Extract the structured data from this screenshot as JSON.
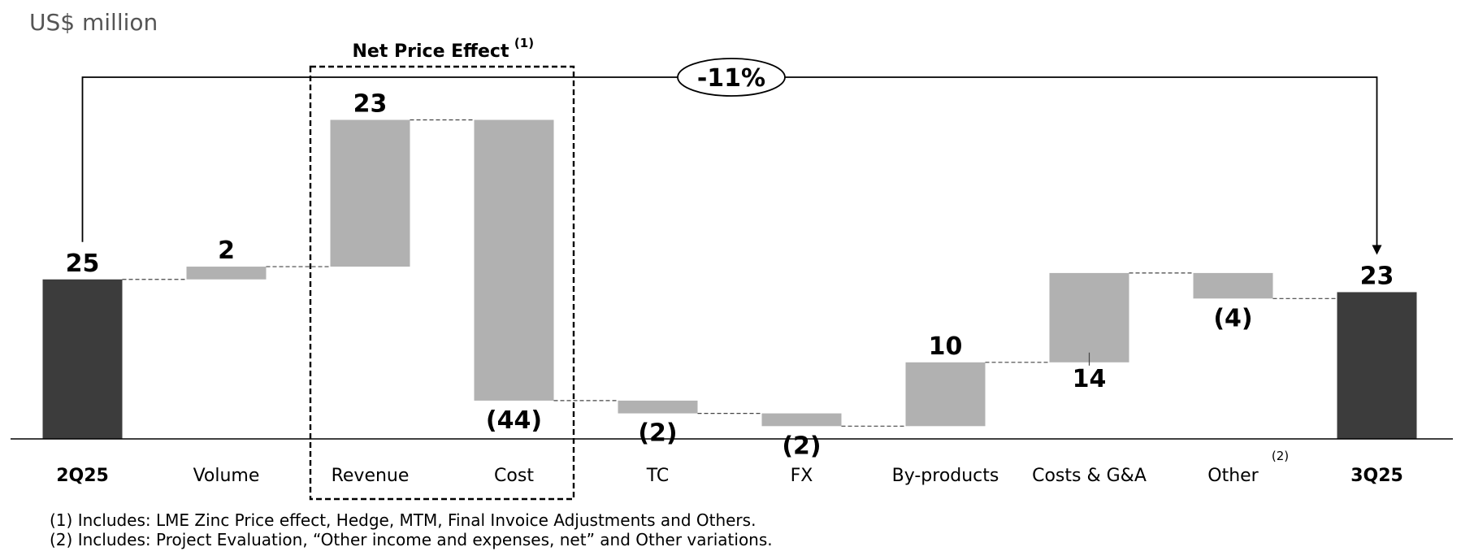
{
  "chart_data": {
    "type": "bar",
    "subtype": "waterfall",
    "unit_label": "US$ million",
    "categories": [
      "2Q25",
      "Volume",
      "Revenue",
      "Cost",
      "TC",
      "FX",
      "By-products",
      "Costs & G&A",
      "Other",
      "3Q25"
    ],
    "steps": [
      {
        "category": "2Q25",
        "kind": "total",
        "value": 25,
        "label": "25"
      },
      {
        "category": "Volume",
        "kind": "delta",
        "value": 2,
        "label": "2"
      },
      {
        "category": "Revenue",
        "kind": "delta",
        "value": 23,
        "label": "23"
      },
      {
        "category": "Cost",
        "kind": "delta",
        "value": -44,
        "label": "(44)"
      },
      {
        "category": "TC",
        "kind": "delta",
        "value": -2,
        "label": "(2)"
      },
      {
        "category": "FX",
        "kind": "delta",
        "value": -2,
        "label": "(2)"
      },
      {
        "category": "By-products",
        "kind": "delta",
        "value": 10,
        "label": "10"
      },
      {
        "category": "Costs & G&A",
        "kind": "delta",
        "value": 14,
        "label": "14"
      },
      {
        "category": "Other",
        "kind": "delta",
        "value": -4,
        "label": "(4)",
        "footnote_marker": "(2)"
      },
      {
        "category": "3Q25",
        "kind": "total",
        "value": 23,
        "label": "23"
      }
    ],
    "bold_categories": [
      "2Q25",
      "3Q25"
    ],
    "net_price_box": {
      "title": "Net Price Effect",
      "marker": "(1)",
      "categories": [
        "Revenue",
        "Cost"
      ]
    },
    "change_label": "-11%",
    "colors": {
      "total": "#3c3c3c",
      "delta": "#b1b1b1",
      "baseline": "#000000",
      "connector": "#444444"
    },
    "footnotes": [
      "(1) Includes: LME Zinc Price effect, Hedge, MTM, Final Invoice Adjustments and Others.",
      "(2) Includes: Project Evaluation, “Other income and expenses, net” and Other variations."
    ]
  }
}
